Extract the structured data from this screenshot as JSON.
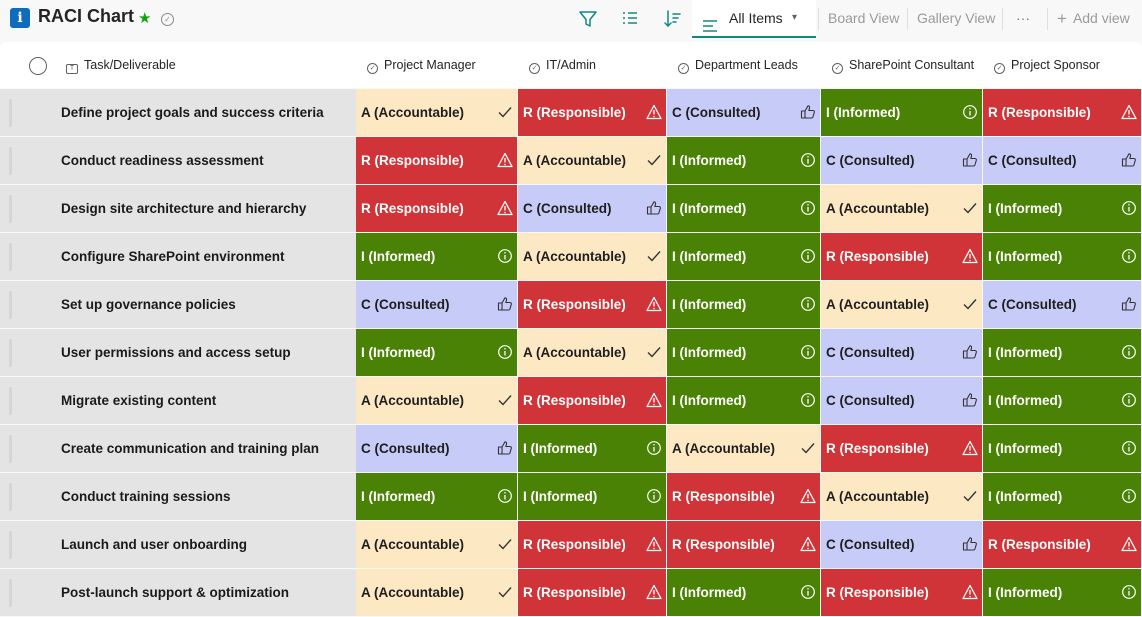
{
  "app": {
    "title": "RACI Chart"
  },
  "toolbar": {
    "views": [
      {
        "label": "All Items",
        "active": true
      },
      {
        "label": "Board View",
        "active": false
      },
      {
        "label": "Gallery View",
        "active": false
      }
    ],
    "more_label": "···",
    "add_view_label": "Add view",
    "icons": [
      "filter-icon",
      "group-by-icon",
      "sort-icon",
      "list-view-icon",
      "chevron-down-icon",
      "plus-icon"
    ]
  },
  "columns": {
    "task": "Task/Deliverable",
    "roles": [
      "Project Manager",
      "IT/Admin",
      "Department Leads",
      "SharePoint Consultant",
      "Project Sponsor"
    ]
  },
  "legend": {
    "A": {
      "label": "A (Accountable)",
      "color": "#fde8c4",
      "icon": "checkmark-icon"
    },
    "R": {
      "label": "R (Responsible)",
      "color": "#d13438",
      "icon": "warning-icon"
    },
    "C": {
      "label": "C (Consulted)",
      "color": "#c7cbf7",
      "icon": "thumbs-up-icon"
    },
    "I": {
      "label": "I (Informed)",
      "color": "#498205",
      "icon": "info-icon"
    }
  },
  "rows": [
    {
      "task": "Define project goals and success criteria",
      "cells": [
        "A (Accountable)",
        "R (Responsible)",
        "C (Consulted)",
        "I (Informed)",
        "R (Responsible)"
      ]
    },
    {
      "task": "Conduct readiness assessment",
      "cells": [
        "R (Responsible)",
        "A (Accountable)",
        "I (Informed)",
        "C (Consulted)",
        "C (Consulted)"
      ]
    },
    {
      "task": "Design site architecture and hierarchy",
      "cells": [
        "R (Responsible)",
        "C (Consulted)",
        "I (Informed)",
        "A (Accountable)",
        "I (Informed)"
      ]
    },
    {
      "task": "Configure SharePoint environment",
      "cells": [
        "I (Informed)",
        "A (Accountable)",
        "I (Informed)",
        "R (Responsible)",
        "I (Informed)"
      ]
    },
    {
      "task": "Set up governance policies",
      "cells": [
        "C (Consulted)",
        "R (Responsible)",
        "I (Informed)",
        "A (Accountable)",
        "C (Consulted)"
      ]
    },
    {
      "task": "User permissions and access setup",
      "cells": [
        "I (Informed)",
        "A (Accountable)",
        "I (Informed)",
        "C (Consulted)",
        "I (Informed)"
      ]
    },
    {
      "task": "Migrate existing content",
      "cells": [
        "A (Accountable)",
        "R (Responsible)",
        "I (Informed)",
        "C (Consulted)",
        "I (Informed)"
      ]
    },
    {
      "task": "Create communication and training plan",
      "cells": [
        "C (Consulted)",
        "I (Informed)",
        "A (Accountable)",
        "R (Responsible)",
        "I (Informed)"
      ]
    },
    {
      "task": "Conduct training sessions",
      "cells": [
        "I (Informed)",
        "I (Informed)",
        "R (Responsible)",
        "A (Accountable)",
        "I (Informed)"
      ]
    },
    {
      "task": "Launch and user onboarding",
      "cells": [
        "A (Accountable)",
        "R (Responsible)",
        "R (Responsible)",
        "C (Consulted)",
        "R (Responsible)"
      ]
    },
    {
      "task": "Post-launch support & optimization",
      "cells": [
        "A (Accountable)",
        "R (Responsible)",
        "I (Informed)",
        "R (Responsible)",
        "I (Informed)"
      ]
    }
  ]
}
